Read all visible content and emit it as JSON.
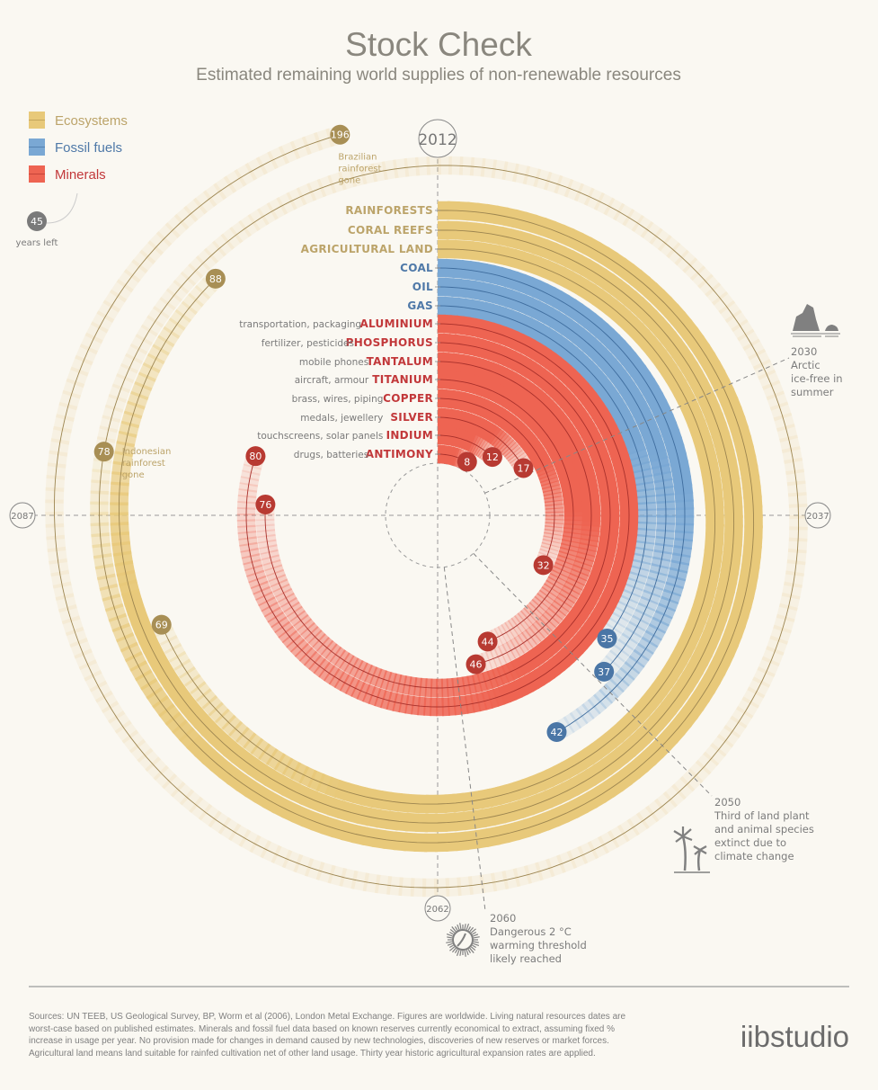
{
  "title": "Stock Check",
  "subtitle": "Estimated remaining world supplies of non-renewable resources",
  "legend": [
    {
      "label": "Ecosystems",
      "color": "#e8c97a",
      "text_color": "#bca46a"
    },
    {
      "label": "Fossil fuels",
      "color": "#7aa8d4",
      "text_color": "#4f79a8"
    },
    {
      "label": "Minerals",
      "color": "#ee6452",
      "text_color": "#c2383a"
    }
  ],
  "legend_sample": {
    "value": "45",
    "label": "years left"
  },
  "years": {
    "top": "2012",
    "right": "2037",
    "bottom": "2062",
    "left": "2087"
  },
  "chart_data": {
    "type": "bar",
    "layout": "radial, clockwise from top, one revolution = 100 years",
    "unit": "years left",
    "series": [
      {
        "name": "Ecosystems",
        "color": "#e8c97a",
        "label_color": "#a88f55",
        "items": [
          {
            "name": "RAINFORESTS",
            "use": "",
            "values": [
              78,
              196
            ],
            "notes": [
              "Indonesian rainforest gone",
              "Brazilian rainforest gone"
            ]
          },
          {
            "name": "CORAL REEFS",
            "use": "",
            "values": [
              88
            ]
          },
          {
            "name": "AGRICULTURAL LAND",
            "use": "",
            "values": [
              69
            ]
          }
        ]
      },
      {
        "name": "Fossil fuels",
        "color": "#7aa8d4",
        "label_color": "#4a76a6",
        "items": [
          {
            "name": "COAL",
            "use": "",
            "values": [
              42
            ]
          },
          {
            "name": "OIL",
            "use": "",
            "values": [
              37
            ]
          },
          {
            "name": "GAS",
            "use": "",
            "values": [
              35
            ]
          }
        ]
      },
      {
        "name": "Minerals",
        "color": "#ee6452",
        "label_color": "#b83a32",
        "items": [
          {
            "name": "ALUMINIUM",
            "use": "transportation, packaging",
            "values": [
              80
            ]
          },
          {
            "name": "PHOSPHORUS",
            "use": "fertilizer, pesticides",
            "values": [
              76
            ]
          },
          {
            "name": "TANTALUM",
            "use": "mobile phones",
            "values": [
              46
            ]
          },
          {
            "name": "TITANIUM",
            "use": "aircraft, armour",
            "values": [
              44
            ]
          },
          {
            "name": "COPPER",
            "use": "brass, wires, piping",
            "values": [
              32
            ]
          },
          {
            "name": "SILVER",
            "use": "medals, jewellery",
            "values": [
              17
            ]
          },
          {
            "name": "INDIUM",
            "use": "touchscreens, solar panels",
            "values": [
              12
            ]
          },
          {
            "name": "ANTIMONY",
            "use": "drugs, batteries",
            "values": [
              8
            ]
          }
        ]
      }
    ],
    "annotations": [
      {
        "year": "2030",
        "lines": [
          "Arctic",
          "ice-free in",
          "summer"
        ],
        "icon": "iceberg-icon"
      },
      {
        "year": "2050",
        "lines": [
          "Third of land plant",
          "and animal species",
          "extinct due to",
          "climate change"
        ],
        "icon": "palm-tree-icon"
      },
      {
        "year": "2060",
        "lines": [
          "Dangerous 2 °C",
          "warming threshold",
          "likely reached"
        ],
        "icon": "sun-icon"
      }
    ]
  },
  "footer": {
    "sources": [
      "Sources: UN TEEB, US Geological Survey, BP, Worm et al (2006), London Metal Exchange. Figures are worldwide. Living natural resources dates are",
      "worst-case based on published estimates. Minerals and fossil fuel data based on known reserves currently economical to extract, assuming fixed %",
      "increase in usage per year. No provision made for changes in demand caused by new technologies, discoveries of new reserves or market forces.",
      "Agricultural land means land suitable for rainfed cultivation net of other land usage. Thirty year historic agricultural expansion rates are applied."
    ],
    "logo": "iibstudio"
  }
}
